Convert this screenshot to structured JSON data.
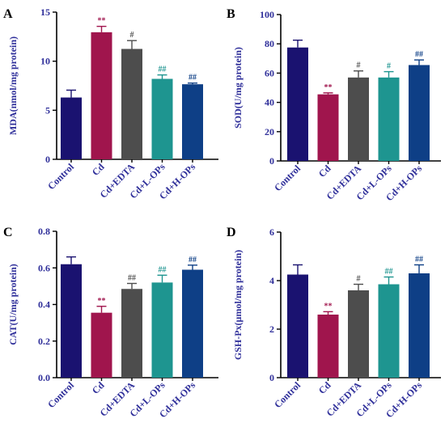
{
  "colors": {
    "bars": [
      "#1a1270",
      "#a0154d",
      "#4d4d4d",
      "#1e9590",
      "#0e3f86"
    ],
    "axis_text": "#2f2f9a",
    "axis_line": "#000000",
    "panel_letter": "#000000"
  },
  "chart_data": [
    {
      "panel": "A",
      "type": "bar",
      "ylabel": "MDA(nmol/mg protein)",
      "categories": [
        "Control",
        "Cd",
        "Cd+EDTA",
        "Cd+L-OPs",
        "Cd+H-OPs"
      ],
      "values": [
        6.3,
        12.95,
        11.25,
        8.2,
        7.65
      ],
      "errors": [
        0.75,
        0.6,
        0.85,
        0.4,
        0.12
      ],
      "annotations": [
        "",
        "**",
        "#",
        "##",
        "##"
      ],
      "ylim": [
        0,
        15
      ],
      "yticks": [
        "0",
        "5",
        "10",
        "15"
      ],
      "grid": false
    },
    {
      "panel": "B",
      "type": "bar",
      "ylabel": "SOD(U/mg protein)",
      "categories": [
        "Control",
        "Cd",
        "Cd+EDTA",
        "Cd+L-OPs",
        "Cd+H-OPs"
      ],
      "values": [
        77.5,
        45.5,
        57,
        57,
        65.5
      ],
      "errors": [
        5,
        1,
        4.5,
        4,
        3.5
      ],
      "annotations": [
        "",
        "**",
        "#",
        "#",
        "##"
      ],
      "ylim": [
        0,
        100
      ],
      "yticks": [
        "0",
        "20",
        "40",
        "60",
        "80",
        "100"
      ],
      "grid": false
    },
    {
      "panel": "C",
      "type": "bar",
      "ylabel": "CAT(U/mg protein)",
      "categories": [
        "Control",
        "Cd",
        "Cd+EDTA",
        "Cd+L-OPs",
        "Cd+H-OPs"
      ],
      "values": [
        0.62,
        0.355,
        0.485,
        0.52,
        0.59
      ],
      "errors": [
        0.04,
        0.035,
        0.03,
        0.04,
        0.025
      ],
      "annotations": [
        "",
        "**",
        "##",
        "##",
        "##"
      ],
      "ylim": [
        0,
        0.8
      ],
      "yticks": [
        "0.0",
        "0.2",
        "0.4",
        "0.6",
        "0.8"
      ],
      "grid": false
    },
    {
      "panel": "D",
      "type": "bar",
      "ylabel": "GSH-Px(μmol/mg protein)",
      "categories": [
        "Control",
        "Cd",
        "Cd+EDTA",
        "Cd+L-OPs",
        "Cd+H-OPs"
      ],
      "values": [
        4.25,
        2.6,
        3.6,
        3.85,
        4.3
      ],
      "errors": [
        0.4,
        0.12,
        0.25,
        0.3,
        0.35
      ],
      "annotations": [
        "",
        "**",
        "#",
        "##",
        "##"
      ],
      "ylim": [
        0,
        6
      ],
      "yticks": [
        "0",
        "2",
        "4",
        "6"
      ],
      "grid": false
    }
  ]
}
